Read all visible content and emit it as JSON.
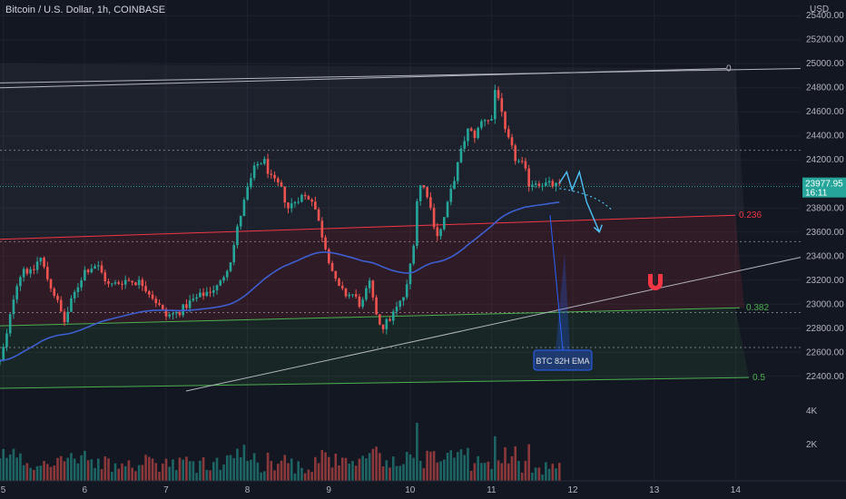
{
  "symbol_title": "Bitcoin / U.S. Dollar, 1h, COINBASE",
  "currency_label": "USD",
  "price_badge": {
    "value": "23977.95",
    "countdown": "16:11"
  },
  "annotation": "BTC 82H EMA",
  "colors": {
    "background": "#131722",
    "up": "#26a69a",
    "down": "#ef5350",
    "ema": "#3d5fd1",
    "fib_red": "#f23645",
    "fib_green": "#4caf50",
    "trend": "#b2b5be",
    "callout_bg": "#1e3a6e",
    "callout_border": "#2962ff",
    "path_arrow": "#4fc3f7",
    "magnet": "#f23645"
  },
  "icons": [
    "magnet-icon"
  ],
  "fib_levels": [
    {
      "label": "0",
      "price": 24960
    },
    {
      "label": "0.236",
      "price": 23740
    },
    {
      "label": "0.382",
      "price": 22970
    },
    {
      "label": "0.5",
      "price": 22390
    }
  ],
  "chart_data": {
    "type": "candlestick",
    "title": "Bitcoin / U.S. Dollar, 1h, COINBASE",
    "y_axis": {
      "unit": "USD",
      "ticks": [
        25400,
        25200,
        25000,
        24800,
        24600,
        24400,
        24200,
        24000,
        23800,
        23600,
        23400,
        23200,
        23000,
        22800,
        22600,
        22400
      ],
      "ylim": [
        22270,
        25530
      ]
    },
    "x_axis": {
      "ticks": [
        "5",
        "6",
        "7",
        "8",
        "9",
        "10",
        "11",
        "12",
        "13",
        "14"
      ],
      "xlim": [
        4.96,
        15.0
      ]
    },
    "volume_axis": {
      "ticks": [
        "4K",
        "2K"
      ],
      "max": 4800
    },
    "last_price": 23977.95,
    "ema_period_hours": 82,
    "anchors": [
      [
        4.96,
        22520
      ],
      [
        5.05,
        22760
      ],
      [
        5.15,
        23150
      ],
      [
        5.25,
        23300
      ],
      [
        5.35,
        23250
      ],
      [
        5.45,
        23400
      ],
      [
        5.55,
        23200
      ],
      [
        5.65,
        23050
      ],
      [
        5.75,
        22850
      ],
      [
        5.85,
        23050
      ],
      [
        6.0,
        23280
      ],
      [
        6.15,
        23330
      ],
      [
        6.3,
        23150
      ],
      [
        6.5,
        23200
      ],
      [
        6.7,
        23180
      ],
      [
        6.85,
        23050
      ],
      [
        7.0,
        22900
      ],
      [
        7.15,
        22930
      ],
      [
        7.3,
        23020
      ],
      [
        7.5,
        23100
      ],
      [
        7.65,
        23150
      ],
      [
        7.8,
        23380
      ],
      [
        7.9,
        23700
      ],
      [
        8.0,
        23950
      ],
      [
        8.1,
        24150
      ],
      [
        8.2,
        24200
      ],
      [
        8.3,
        24030
      ],
      [
        8.4,
        23980
      ],
      [
        8.5,
        23800
      ],
      [
        8.65,
        23900
      ],
      [
        8.8,
        23880
      ],
      [
        8.9,
        23620
      ],
      [
        9.0,
        23380
      ],
      [
        9.1,
        23150
      ],
      [
        9.2,
        23080
      ],
      [
        9.3,
        23080
      ],
      [
        9.4,
        22980
      ],
      [
        9.5,
        23180
      ],
      [
        9.55,
        23000
      ],
      [
        9.65,
        22800
      ],
      [
        9.75,
        22880
      ],
      [
        9.85,
        22980
      ],
      [
        9.95,
        23100
      ],
      [
        10.05,
        23550
      ],
      [
        10.1,
        24000
      ],
      [
        10.2,
        23950
      ],
      [
        10.3,
        23650
      ],
      [
        10.35,
        23550
      ],
      [
        10.45,
        23800
      ],
      [
        10.6,
        24200
      ],
      [
        10.7,
        24450
      ],
      [
        10.8,
        24400
      ],
      [
        10.9,
        24550
      ],
      [
        11.0,
        24530
      ],
      [
        11.05,
        24820
      ],
      [
        11.1,
        24700
      ],
      [
        11.15,
        24450
      ],
      [
        11.2,
        24380
      ],
      [
        11.3,
        24200
      ],
      [
        11.4,
        24150
      ],
      [
        11.45,
        24000
      ],
      [
        11.55,
        24020
      ],
      [
        11.65,
        24000
      ],
      [
        11.75,
        23990
      ],
      [
        11.85,
        23978
      ]
    ]
  }
}
